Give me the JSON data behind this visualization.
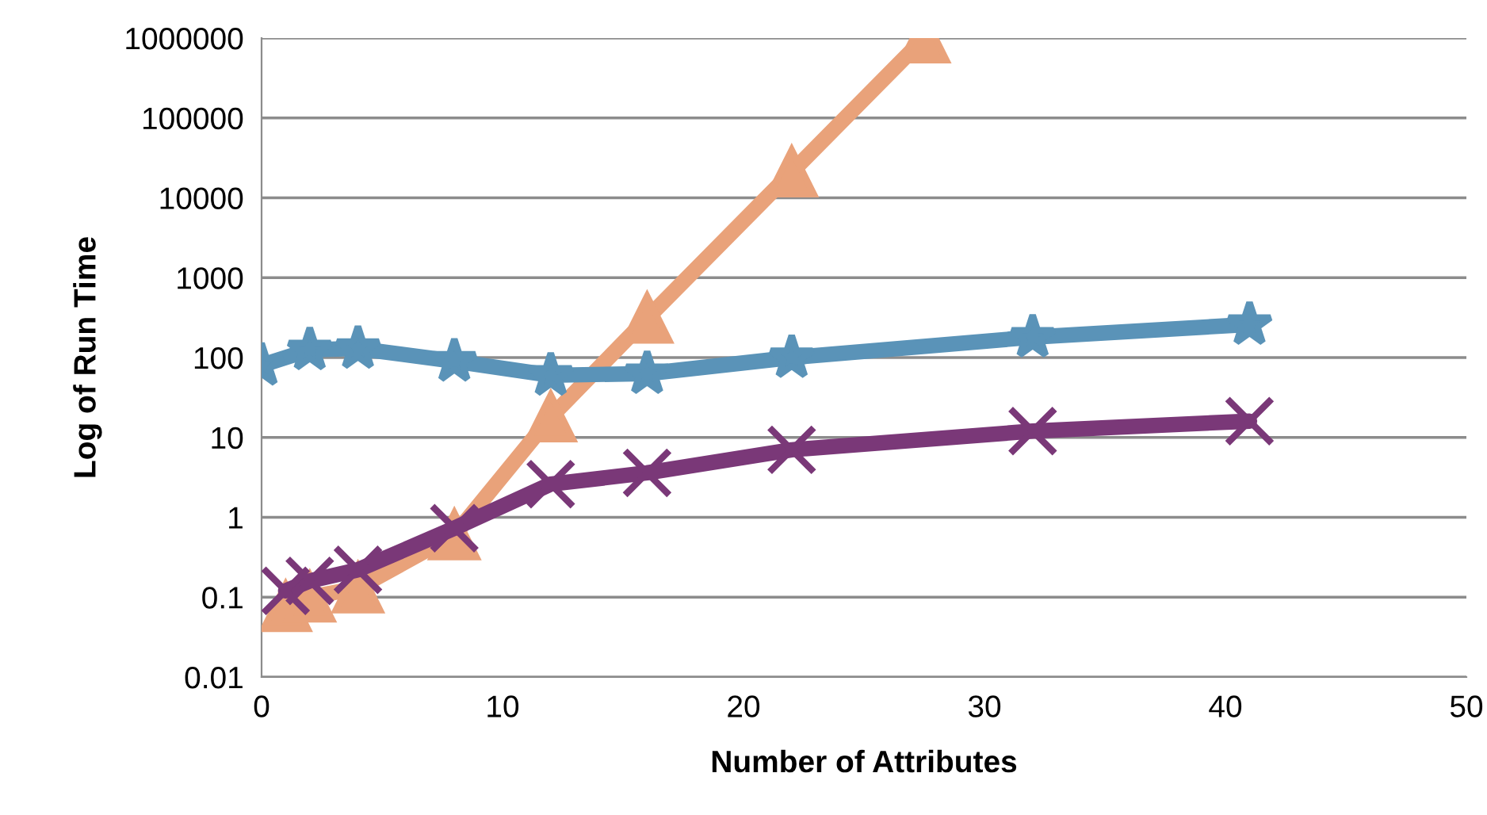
{
  "chart_data": {
    "type": "line",
    "xlabel": "Number of Attributes",
    "ylabel": "Log of Run Time",
    "log": "y",
    "grid": "y",
    "legend": false,
    "xlim": [
      0,
      50
    ],
    "xticks": [
      0,
      10,
      20,
      30,
      40,
      50
    ],
    "ylim": [
      0.01,
      1000000
    ],
    "yticks": [
      {
        "value": 0.01,
        "label": "0.01"
      },
      {
        "value": 0.1,
        "label": "0.1"
      },
      {
        "value": 1,
        "label": "1"
      },
      {
        "value": 10,
        "label": "10"
      },
      {
        "value": 100,
        "label": "100"
      },
      {
        "value": 1000,
        "label": "1000"
      },
      {
        "value": 10000,
        "label": "10000"
      },
      {
        "value": 100000,
        "label": "100000"
      },
      {
        "value": 1000000,
        "label": "1000000"
      }
    ],
    "series": [
      {
        "color": "#e9a27a",
        "marker": "triangle",
        "x": [
          1,
          2,
          4,
          8,
          12,
          16,
          22,
          27.5
        ],
        "values": [
          0.076,
          0.1,
          0.13,
          0.6,
          18,
          310,
          21000,
          1000000
        ]
      },
      {
        "color": "#5a93b8",
        "marker": "star",
        "x": [
          0,
          2,
          4,
          8,
          12,
          16,
          22,
          32,
          41
        ],
        "values": [
          80,
          125,
          130,
          90,
          60,
          63,
          100,
          180,
          260
        ]
      },
      {
        "color": "#7a3878",
        "marker": "cross",
        "x": [
          1,
          2,
          4,
          8,
          12,
          16,
          22,
          32,
          41
        ],
        "values": [
          0.12,
          0.16,
          0.22,
          0.73,
          2.6,
          3.6,
          7,
          12,
          16
        ]
      }
    ]
  }
}
